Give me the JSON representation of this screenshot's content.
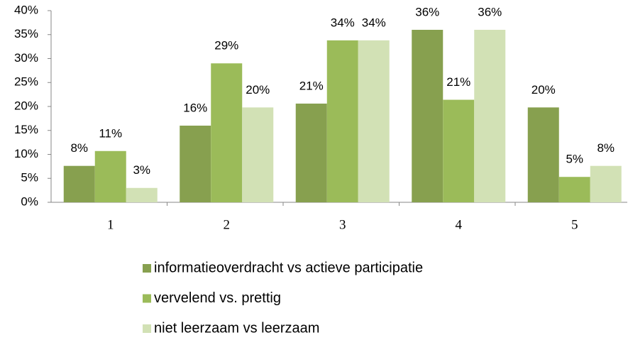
{
  "chart_data": {
    "type": "bar",
    "categories": [
      "1",
      "2",
      "3",
      "4",
      "5"
    ],
    "series": [
      {
        "name": "informatieoverdracht vs actieve participatie",
        "color": "#87a04f",
        "values": [
          7.6,
          16,
          20.6,
          36,
          19.8
        ],
        "value_labels": [
          "8%",
          "16%",
          "21%",
          "36%",
          "20%"
        ]
      },
      {
        "name": "vervelend vs. prettig",
        "color": "#9bbb59",
        "values": [
          10.7,
          29,
          33.8,
          21.4,
          5.3
        ],
        "value_labels": [
          "11%",
          "29%",
          "34%",
          "21%",
          "5%"
        ]
      },
      {
        "name": "niet leerzaam vs leerzaam",
        "color": "#d2e1b5",
        "values": [
          3,
          19.8,
          33.8,
          36,
          7.6
        ],
        "value_labels": [
          "3%",
          "20%",
          "34%",
          "36%",
          "8%"
        ]
      }
    ],
    "ylim": [
      0,
      40
    ],
    "yticks": [
      {
        "value": 0,
        "label": "0%"
      },
      {
        "value": 5,
        "label": "5%"
      },
      {
        "value": 10,
        "label": "10%"
      },
      {
        "value": 15,
        "label": "15%"
      },
      {
        "value": 20,
        "label": "20%"
      },
      {
        "value": 25,
        "label": "25%"
      },
      {
        "value": 30,
        "label": "30%"
      },
      {
        "value": 35,
        "label": "35%"
      },
      {
        "value": 40,
        "label": "40%"
      }
    ],
    "grid": false
  }
}
